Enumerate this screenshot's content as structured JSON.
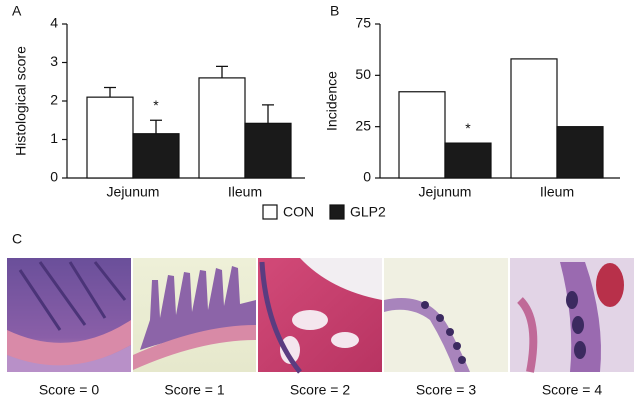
{
  "chart_data": [
    {
      "type": "bar",
      "panel_label": "A",
      "y_label": "Histological score",
      "categories": [
        "Jejunum",
        "Ileum"
      ],
      "series": [
        {
          "name": "CON",
          "color": "#ffffff",
          "values": [
            2.1,
            2.6
          ],
          "errors": [
            0.25,
            0.3
          ]
        },
        {
          "name": "GLP2",
          "color": "#1a1a1a",
          "values": [
            1.15,
            1.42
          ],
          "errors": [
            0.35,
            0.48
          ]
        }
      ],
      "ylim": [
        0,
        4
      ],
      "yticks": [
        0,
        1,
        2,
        3,
        4
      ],
      "annotations": [
        "*"
      ]
    },
    {
      "type": "bar",
      "panel_label": "B",
      "y_label": "Incidence",
      "categories": [
        "Jejunum",
        "Ileum"
      ],
      "series": [
        {
          "name": "CON",
          "color": "#ffffff",
          "values": [
            42,
            58
          ]
        },
        {
          "name": "GLP2",
          "color": "#1a1a1a",
          "values": [
            17,
            25
          ]
        }
      ],
      "ylim": [
        0,
        75
      ],
      "yticks": [
        0,
        25,
        50,
        75
      ],
      "annotations": [
        "*"
      ]
    }
  ],
  "panel_c": {
    "label": "C",
    "captions": [
      "Score = 0",
      "Score = 1",
      "Score = 2",
      "Score = 3",
      "Score = 4"
    ]
  }
}
